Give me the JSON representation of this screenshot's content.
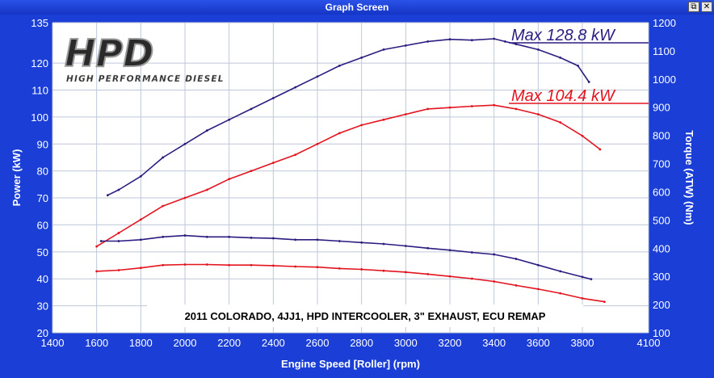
{
  "window": {
    "title": "Graph Screen",
    "restore_glyph": "⧉",
    "close_glyph": "✕"
  },
  "colors": {
    "frame": "#1b3fd6",
    "plot_bg": "#ffffff",
    "grid": "#bfc8d8",
    "power_high": "#2b1d80",
    "power_low": "#e3141e",
    "caption_bg": "#ffffff"
  },
  "logo": {
    "text": "HPD",
    "subtitle": "HIGH PERFORMANCE DIESEL"
  },
  "caption": "2011 COLORADO, 4JJ1, HPD INTERCOOLER, 3\" EXHAUST, ECU REMAP",
  "chart_data": {
    "type": "line",
    "xlabel": "Engine Speed [Roller] (rpm)",
    "ylabel": "Power (kW)",
    "y2label": "Torque (ATW) (Nm)",
    "xlim": [
      1400,
      4100
    ],
    "ylim": [
      20,
      135
    ],
    "y2lim": [
      100,
      1200
    ],
    "grid": true,
    "x_ticks": [
      1400,
      1600,
      1800,
      2000,
      2200,
      2400,
      2600,
      2800,
      3000,
      3200,
      3400,
      3600,
      3800,
      4100
    ],
    "y_ticks": [
      20,
      30,
      40,
      50,
      60,
      70,
      80,
      90,
      100,
      110,
      120,
      135
    ],
    "y2_ticks": [
      100,
      200,
      300,
      400,
      500,
      600,
      700,
      800,
      900,
      1000,
      1100,
      1200
    ],
    "annotations": [
      {
        "text": "Max 128.8 kW",
        "y": 128.8,
        "color": "#2b1d80"
      },
      {
        "text": "Max 104.4 kW",
        "y": 104.4,
        "color": "#e3141e"
      }
    ],
    "series": [
      {
        "id": "power-high",
        "axis": "y",
        "color": "#2b1d80",
        "x": [
          1650,
          1700,
          1800,
          1900,
          2000,
          2100,
          2200,
          2300,
          2400,
          2500,
          2600,
          2700,
          2800,
          2900,
          3000,
          3100,
          3200,
          3300,
          3400,
          3450,
          3500,
          3600,
          3700,
          3780,
          3830
        ],
        "values": [
          71,
          73,
          78,
          85,
          90,
          95,
          99,
          103,
          107,
          111,
          115,
          119,
          122,
          125,
          126.5,
          128,
          128.8,
          128.5,
          129,
          128,
          127,
          125,
          122,
          119,
          113
        ]
      },
      {
        "id": "power-low",
        "axis": "y",
        "color": "#e3141e",
        "x": [
          1600,
          1700,
          1800,
          1900,
          2000,
          2100,
          2200,
          2300,
          2400,
          2500,
          2600,
          2700,
          2800,
          2900,
          3000,
          3100,
          3200,
          3300,
          3400,
          3500,
          3600,
          3700,
          3800,
          3880
        ],
        "values": [
          52,
          57,
          62,
          67,
          70,
          73,
          77,
          80,
          83,
          86,
          90,
          94,
          97,
          99,
          101,
          103,
          103.5,
          104,
          104.4,
          103,
          101,
          98,
          93,
          88
        ]
      },
      {
        "id": "torque-high",
        "axis": "y2",
        "color": "#2b1d80",
        "x": [
          1620,
          1700,
          1800,
          1900,
          2000,
          2100,
          2200,
          2300,
          2400,
          2500,
          2600,
          2700,
          2800,
          2900,
          3000,
          3100,
          3200,
          3300,
          3400,
          3500,
          3600,
          3700,
          3800,
          3840
        ],
        "values": [
          425,
          425,
          430,
          440,
          445,
          440,
          440,
          437,
          435,
          430,
          430,
          425,
          420,
          415,
          408,
          400,
          393,
          385,
          378,
          362,
          340,
          318,
          298,
          290
        ]
      },
      {
        "id": "torque-low",
        "axis": "y2",
        "color": "#e3141e",
        "x": [
          1600,
          1700,
          1800,
          1900,
          2000,
          2100,
          2200,
          2300,
          2400,
          2500,
          2600,
          2700,
          2800,
          2900,
          3000,
          3100,
          3200,
          3300,
          3400,
          3500,
          3600,
          3700,
          3800,
          3900
        ],
        "values": [
          318,
          322,
          330,
          340,
          342,
          342,
          340,
          340,
          338,
          335,
          333,
          328,
          325,
          320,
          315,
          308,
          300,
          292,
          282,
          268,
          255,
          240,
          222,
          210
        ]
      }
    ]
  }
}
